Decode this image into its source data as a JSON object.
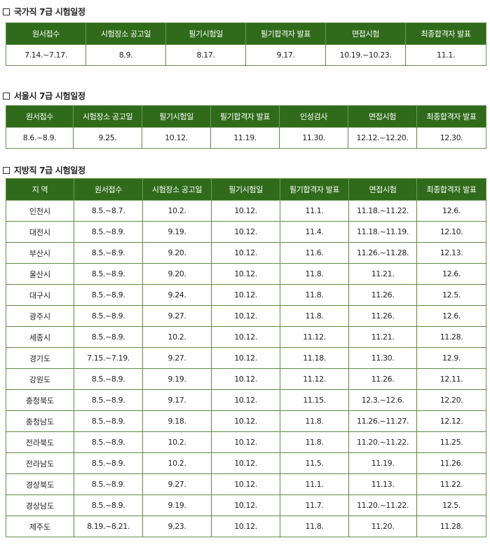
{
  "national": {
    "title": "국가직 7급 시험일정",
    "headers": [
      "원서접수",
      "시험장소 공고일",
      "필기시험일",
      "필기합격자 발표",
      "면접시험",
      "최종합격자 발표"
    ],
    "row": [
      "7.14.~7.17.",
      "8.9.",
      "8.17.",
      "9.17.",
      "10.19.~10.23.",
      "11.1."
    ]
  },
  "seoul": {
    "title": "서울시 7급 시험일정",
    "headers": [
      "원서접수",
      "시험장소 공고일",
      "필기시험일",
      "필기합격자 발표",
      "인성검사",
      "면접시험",
      "최종합격자 발표"
    ],
    "row": [
      "8.6.~8.9.",
      "9.25.",
      "10.12.",
      "11.19.",
      "11.30.",
      "12.12.~12.20.",
      "12.30."
    ]
  },
  "local": {
    "title": "지방직 7급 시험일정",
    "headers": [
      "지 역",
      "원서접수",
      "시험장소 공고일",
      "필기시험일",
      "필기합격자 발표",
      "면접시험",
      "최종합격자 발표"
    ],
    "rows": [
      [
        "인천시",
        "8.5.~8.7.",
        "10.2.",
        "10.12.",
        "11.1.",
        "11.18.~11.22.",
        "12.6."
      ],
      [
        "대전시",
        "8.5.~8.9.",
        "9.19.",
        "10.12.",
        "11.4.",
        "11.18.~11.19.",
        "12.10."
      ],
      [
        "부산시",
        "8.5.~8.9.",
        "9.20.",
        "10.12.",
        "11.6.",
        "11.26.~11.28.",
        "12.13."
      ],
      [
        "울산시",
        "8.5.~8.9.",
        "9.20.",
        "10.12.",
        "11.8.",
        "11.21.",
        "12.6."
      ],
      [
        "대구시",
        "8.5.~8.9.",
        "9.24.",
        "10.12.",
        "11.8.",
        "11.26.",
        "12.5."
      ],
      [
        "광주시",
        "8.5.~8.9.",
        "9.27.",
        "10.12.",
        "11.8.",
        "11.26.",
        "12.6."
      ],
      [
        "세종시",
        "8.5.~8.9.",
        "10.2.",
        "10.12.",
        "11.12.",
        "11.21.",
        "11.28."
      ],
      [
        "경기도",
        "7.15.~7.19.",
        "9.27.",
        "10.12.",
        "11.18.",
        "11.30.",
        "12.9."
      ],
      [
        "강원도",
        "8.5.~8.9.",
        "9.19.",
        "10.12.",
        "11.12.",
        "11.26.",
        "12.11."
      ],
      [
        "충청북도",
        "8.5.~8.9.",
        "9.17.",
        "10.12.",
        "11.15.",
        "12.3.~12.6.",
        "12.20."
      ],
      [
        "충청남도",
        "8.5.~8.9.",
        "9.18.",
        "10.12.",
        "11.8.",
        "11.26.~11.27.",
        "12.12."
      ],
      [
        "전라북도",
        "8.5.~8.9.",
        "10.2.",
        "10.12.",
        "11.8.",
        "11.20.~11.22.",
        "11.25."
      ],
      [
        "전라남도",
        "8.5.~8.9.",
        "10.2.",
        "10.12.",
        "11.5.",
        "11.19.",
        "11.26."
      ],
      [
        "경상북도",
        "8.5.~8.9.",
        "9.27.",
        "10.12.",
        "11.1.",
        "11.13.",
        "11.22."
      ],
      [
        "경상남도",
        "8.5.~8.9.",
        "9.19.",
        "10.12.",
        "11.7.",
        "11.20.~11.22.",
        "12.5."
      ],
      [
        "제주도",
        "8.19.~8.21.",
        "9.23.",
        "10.12.",
        "11.8.",
        "11.20.",
        "11.28."
      ]
    ]
  }
}
